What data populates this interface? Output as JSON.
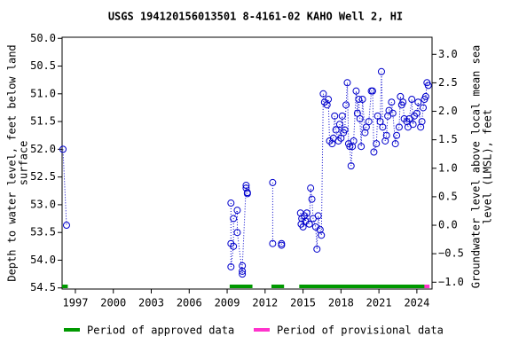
{
  "chart_data": {
    "type": "scatter",
    "title": "USGS 194120156013501 8-4161-02 KAHO Well 2, HI",
    "y_label": [
      "Depth to water level, feet below land",
      "surface"
    ],
    "y2_label": [
      "Groundwater level above local mean sea",
      "level (LMSL), feet"
    ],
    "xlim": [
      1995.95,
      2025.2
    ],
    "xticks": [
      1997,
      2000,
      2003,
      2006,
      2009,
      2012,
      2015,
      2018,
      2021,
      2024
    ],
    "ylim": [
      54.52,
      49.98
    ],
    "yticks": [
      {
        "value": 50,
        "label": "50.0"
      },
      50.5,
      {
        "value": 51,
        "label": "51.0"
      },
      51.5,
      {
        "value": 52,
        "label": "52.0"
      },
      52.5,
      {
        "value": 53,
        "label": "53.0"
      },
      53.5,
      {
        "value": 54,
        "label": "54.0"
      },
      54.5
    ],
    "y2lim": [
      -1.12,
      3.3
    ],
    "y2ticks": [
      {
        "value": 3,
        "label": "3.0"
      },
      2.5,
      {
        "value": 2,
        "label": "2.0"
      },
      1.5,
      {
        "value": 1,
        "label": "1.0"
      },
      0.5,
      {
        "value": 0,
        "label": "0.0"
      },
      {
        "value": -0.5,
        "label": "−0.5"
      },
      {
        "value": -1,
        "label": "−1.0"
      }
    ],
    "series": [
      {
        "color": "#0000cc",
        "x": [
          1996.02,
          1996.3,
          null,
          2009.3,
          2009.3,
          2009.3,
          2009.5,
          2009.5,
          2009.8,
          2009.8,
          2010.2,
          2010.2,
          2010.2,
          2010.5,
          2010.5,
          2010.6,
          2010.6,
          null,
          2012.6,
          2012.6,
          null,
          2013.3,
          2013.3,
          null,
          2014.8,
          2014.85,
          2014.9,
          2015.0,
          2015.1,
          2015.2,
          2015.3,
          2015.5,
          2015.6,
          2015.7,
          2015.8,
          2016.0,
          2016.1,
          2016.2,
          2016.35,
          2016.45,
          2016.6,
          2016.7,
          2016.9,
          2017.0,
          2017.1,
          2017.3,
          2017.4,
          2017.5,
          2017.6,
          2017.8,
          2017.9,
          2018.0,
          2018.1,
          2018.2,
          2018.3,
          2018.4,
          2018.5,
          2018.6,
          2018.7,
          2018.8,
          2018.9,
          2019.0,
          2019.2,
          2019.3,
          2019.4,
          2019.5,
          2019.6,
          2019.7,
          2019.9,
          2020.0,
          2020.2,
          2020.4,
          2020.5,
          2020.6,
          2020.8,
          2020.9,
          2021.1,
          2021.2,
          2021.3,
          2021.5,
          2021.6,
          2021.7,
          2021.8,
          2022.0,
          2022.1,
          2022.3,
          2022.4,
          2022.6,
          2022.7,
          2022.8,
          2022.9,
          2023.0,
          2023.2,
          2023.3,
          2023.4,
          2023.6,
          2023.7,
          2023.8,
          2024.0,
          2024.1,
          2024.3,
          2024.4,
          2024.5,
          2024.6,
          2024.7,
          2024.8,
          2024.9
        ],
        "values": [
          52.0,
          53.37,
          null,
          52.97,
          53.7,
          54.12,
          53.75,
          53.25,
          53.1,
          53.5,
          54.25,
          54.2,
          54.1,
          52.65,
          52.7,
          52.8,
          52.78,
          null,
          52.6,
          53.7,
          null,
          53.7,
          53.73,
          null,
          53.15,
          53.35,
          53.25,
          53.4,
          53.2,
          53.3,
          53.15,
          53.35,
          52.7,
          52.9,
          53.25,
          53.4,
          53.8,
          53.2,
          53.45,
          53.55,
          51.0,
          51.15,
          51.2,
          51.1,
          51.85,
          51.9,
          51.8,
          51.4,
          51.65,
          51.85,
          51.55,
          51.8,
          51.4,
          51.7,
          51.65,
          51.2,
          50.8,
          51.9,
          51.95,
          52.3,
          51.95,
          51.85,
          50.95,
          51.35,
          51.1,
          51.45,
          51.95,
          51.1,
          51.7,
          51.6,
          51.5,
          50.95,
          50.95,
          52.05,
          51.9,
          51.4,
          51.5,
          50.6,
          51.6,
          51.85,
          51.75,
          51.4,
          51.3,
          51.15,
          51.35,
          51.9,
          51.75,
          51.6,
          51.05,
          51.2,
          51.15,
          51.45,
          51.5,
          51.6,
          51.45,
          51.1,
          51.55,
          51.4,
          51.35,
          51.15,
          51.6,
          51.5,
          51.25,
          51.1,
          51.05,
          50.8,
          50.85
        ]
      }
    ],
    "periods": [
      {
        "name": "Period of approved data",
        "color": "#009900",
        "ranges": [
          [
            1995.95,
            1996.4
          ],
          [
            2009.2,
            2011.0
          ],
          [
            2012.5,
            2013.5
          ],
          [
            2014.7,
            2024.6
          ]
        ]
      },
      {
        "name": "Period of provisional data",
        "color": "#ff33cc",
        "ranges": [
          [
            2024.6,
            2025.0
          ]
        ]
      }
    ]
  }
}
